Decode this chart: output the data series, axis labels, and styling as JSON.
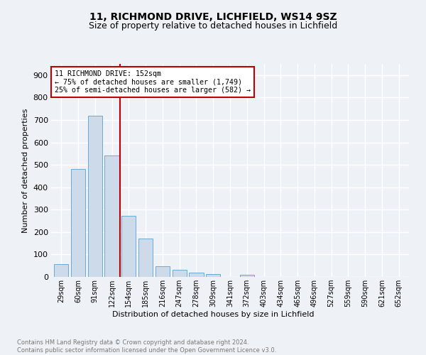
{
  "title1": "11, RICHMOND DRIVE, LICHFIELD, WS14 9SZ",
  "title2": "Size of property relative to detached houses in Lichfield",
  "xlabel": "Distribution of detached houses by size in Lichfield",
  "ylabel": "Number of detached properties",
  "footnote": "Contains HM Land Registry data © Crown copyright and database right 2024.\nContains public sector information licensed under the Open Government Licence v3.0.",
  "bar_labels": [
    "29sqm",
    "60sqm",
    "91sqm",
    "122sqm",
    "154sqm",
    "185sqm",
    "216sqm",
    "247sqm",
    "278sqm",
    "309sqm",
    "341sqm",
    "372sqm",
    "403sqm",
    "434sqm",
    "465sqm",
    "496sqm",
    "527sqm",
    "559sqm",
    "590sqm",
    "621sqm",
    "652sqm"
  ],
  "bar_values": [
    57,
    480,
    718,
    543,
    272,
    172,
    46,
    31,
    18,
    14,
    0,
    8,
    0,
    0,
    0,
    0,
    0,
    0,
    0,
    0,
    0
  ],
  "bar_color": "#cddaea",
  "bar_edge_color": "#6aaad4",
  "highlight_line_color": "#c00000",
  "annotation_text": "11 RICHMOND DRIVE: 152sqm\n← 75% of detached houses are smaller (1,749)\n25% of semi-detached houses are larger (582) →",
  "annotation_box_color": "#ffffff",
  "annotation_box_edge_color": "#c00000",
  "ylim": [
    0,
    950
  ],
  "yticks": [
    0,
    100,
    200,
    300,
    400,
    500,
    600,
    700,
    800,
    900
  ],
  "background_color": "#eef2f7",
  "plot_bg_color": "#eef2f7",
  "grid_color": "#ffffff",
  "title1_fontsize": 10,
  "title2_fontsize": 9,
  "ylabel_fontsize": 8,
  "xlabel_fontsize": 8,
  "footnote_fontsize": 6,
  "footnote_color": "#777777"
}
